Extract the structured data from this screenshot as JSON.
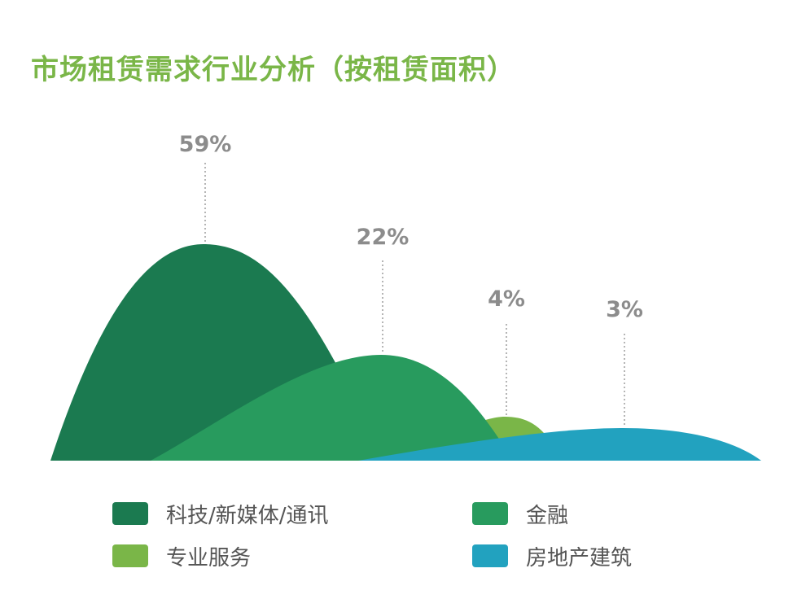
{
  "title": "市场租赁需求行业分析（按租赁面积）",
  "chart_data": {
    "type": "area",
    "unit": "%",
    "series": [
      {
        "name": "科技/新媒体/通讯",
        "value": 59,
        "label": "59%",
        "color": "#1b7a50"
      },
      {
        "name": "金融",
        "value": 22,
        "label": "22%",
        "color": "#289b5e"
      },
      {
        "name": "专业服务",
        "value": 4,
        "label": "4%",
        "color": "#7ab648"
      },
      {
        "name": "房地产建筑",
        "value": 3,
        "label": "3%",
        "color": "#22a2bf"
      }
    ]
  },
  "colors": {
    "title": "#7ab648",
    "data_label": "#8c8c8c",
    "leader_line": "#b5b5b5"
  }
}
